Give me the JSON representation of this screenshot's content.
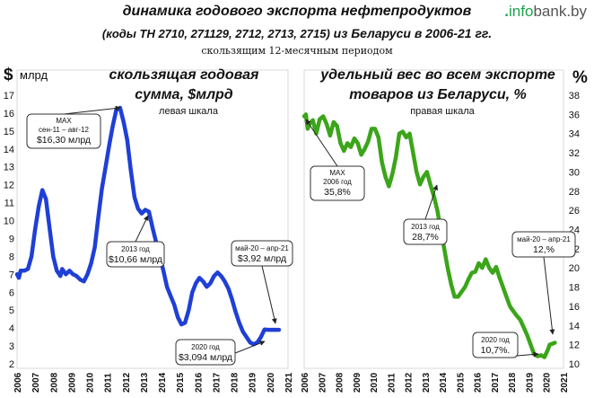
{
  "header": {
    "title": "динамика годового экспорта нефтепродуктов",
    "subtitle_codes": "(коды ТН 2710,  271129,  2712,  2713,  2715)",
    "subtitle_country": " из Беларуси в 2006-21 гг.",
    "note": "скользящим 12-месячным периодом",
    "logo_dot": ".",
    "logo_info": "info",
    "logo_rest": "bank.by"
  },
  "chart_data": [
    {
      "type": "line",
      "title": "скользящая годовая",
      "title_line2": "сумма, $млрд",
      "scale_note": "левая  шкала",
      "ylabel": "$",
      "yunit": "млрд",
      "ylim": [
        2,
        17
      ],
      "yticks": [
        "2",
        "3",
        "4",
        "5",
        "6",
        "7",
        "8",
        "9",
        "10",
        "11",
        "12",
        "13",
        "14",
        "15",
        "16",
        "17"
      ],
      "xticks": [
        "2006",
        "2007",
        "2008",
        "2009",
        "2010",
        "2011",
        "2012",
        "2013",
        "2014",
        "2015",
        "2016",
        "2017",
        "2018",
        "2019",
        "2020",
        "2021"
      ],
      "color": "#1f3fd6",
      "x": [
        2006.0,
        2006.1,
        2006.2,
        2006.4,
        2006.6,
        2006.8,
        2007.0,
        2007.2,
        2007.4,
        2007.6,
        2007.8,
        2008.0,
        2008.2,
        2008.4,
        2008.5,
        2008.7,
        2008.9,
        2009.1,
        2009.3,
        2009.5,
        2009.7,
        2009.9,
        2010.1,
        2010.3,
        2010.5,
        2010.7,
        2010.9,
        2011.1,
        2011.3,
        2011.5,
        2011.7,
        2011.9,
        2012.1,
        2012.3,
        2012.5,
        2012.7,
        2012.9,
        2013.1,
        2013.3,
        2013.5,
        2013.7,
        2013.9,
        2014.1,
        2014.3,
        2014.5,
        2014.7,
        2014.9,
        2015.1,
        2015.3,
        2015.5,
        2015.7,
        2015.9,
        2016.1,
        2016.3,
        2016.5,
        2016.7,
        2016.9,
        2017.1,
        2017.3,
        2017.5,
        2017.7,
        2017.9,
        2018.1,
        2018.3,
        2018.5,
        2018.7,
        2018.9,
        2019.1,
        2019.3,
        2019.5,
        2019.7,
        2019.9,
        2020.1,
        2020.2,
        2020.35,
        2020.5
      ],
      "values": [
        7.0,
        6.8,
        7.2,
        7.2,
        7.3,
        8.0,
        9.5,
        10.8,
        11.7,
        11.2,
        9.6,
        8.0,
        7.2,
        6.9,
        7.3,
        7.0,
        7.2,
        7.0,
        6.9,
        6.7,
        6.6,
        7.0,
        7.6,
        8.5,
        10.2,
        11.8,
        13.0,
        14.2,
        15.3,
        16.2,
        16.3,
        15.5,
        14.5,
        12.8,
        11.3,
        10.66,
        10.4,
        10.6,
        10.5,
        9.6,
        8.8,
        8.0,
        7.2,
        6.3,
        5.8,
        5.3,
        4.6,
        4.2,
        4.3,
        5.0,
        6.0,
        6.5,
        6.8,
        6.6,
        6.3,
        6.5,
        6.9,
        7.1,
        6.9,
        6.6,
        6.2,
        5.6,
        4.9,
        4.3,
        3.8,
        3.5,
        3.2,
        3.094,
        3.2,
        3.5,
        3.92,
        3.9,
        3.9,
        3.9,
        3.9,
        3.9
      ],
      "annotations": [
        {
          "label_lines": [
            "MAX",
            "сен-11 – авг-12",
            "$16,30 млрд"
          ],
          "x": 2011.7,
          "y": 16.3
        },
        {
          "label_lines": [
            "2013 год",
            "$10,66 млрд"
          ],
          "x": 2012.9,
          "y": 10.66
        },
        {
          "label_lines": [
            "май-20 – апр-21",
            "$3,92 млрд"
          ],
          "x": 2020.5,
          "y": 3.92
        },
        {
          "label_lines": [
            "2020 год",
            "$3,094 млрд"
          ],
          "x": 2020.1,
          "y": 3.094
        }
      ]
    },
    {
      "type": "line",
      "title": "удельный вес во всем экспорте",
      "title_line2": "товаров из Беларуси, %",
      "scale_note": "правая  шкала",
      "ylabel": "%",
      "ylim": [
        10,
        38
      ],
      "yticks": [
        "10",
        "12",
        "14",
        "16",
        "18",
        "20",
        "22",
        "24",
        "26",
        "28",
        "30",
        "32",
        "34",
        "36",
        "38"
      ],
      "xticks": [
        "2006",
        "2007",
        "2008",
        "2009",
        "2010",
        "2011",
        "2012",
        "2013",
        "2014",
        "2015",
        "2016",
        "2017",
        "2018",
        "2019",
        "2020",
        "2021"
      ],
      "color": "#3ba51a",
      "x": [
        2006.0,
        2006.1,
        2006.2,
        2006.3,
        2006.5,
        2006.7,
        2006.9,
        2007.1,
        2007.3,
        2007.5,
        2007.7,
        2007.9,
        2008.1,
        2008.3,
        2008.5,
        2008.7,
        2008.9,
        2009.1,
        2009.3,
        2009.5,
        2009.7,
        2009.9,
        2010.1,
        2010.3,
        2010.5,
        2010.7,
        2010.9,
        2011.1,
        2011.3,
        2011.5,
        2011.7,
        2011.9,
        2012.1,
        2012.3,
        2012.5,
        2012.7,
        2012.9,
        2013.1,
        2013.3,
        2013.5,
        2013.7,
        2013.9,
        2014.1,
        2014.3,
        2014.5,
        2014.7,
        2014.9,
        2015.1,
        2015.3,
        2015.5,
        2015.7,
        2015.9,
        2016.1,
        2016.3,
        2016.5,
        2016.7,
        2016.9,
        2017.1,
        2017.3,
        2017.5,
        2017.7,
        2017.9,
        2018.1,
        2018.3,
        2018.5,
        2018.7,
        2018.9,
        2019.1,
        2019.3,
        2019.5,
        2019.7,
        2019.9,
        2020.1,
        2020.2,
        2020.35,
        2020.5
      ],
      "values": [
        35.8,
        36.0,
        34.5,
        35.0,
        35.4,
        34.0,
        35.5,
        35.8,
        35.0,
        33.8,
        35.2,
        34.8,
        33.0,
        32.2,
        33.0,
        32.6,
        33.5,
        33.0,
        31.8,
        32.4,
        33.2,
        34.5,
        34.5,
        33.6,
        31.0,
        29.5,
        28.5,
        29.8,
        31.5,
        34.0,
        34.2,
        33.6,
        34.0,
        32.0,
        30.0,
        28.7,
        29.5,
        30.0,
        28.7,
        27.5,
        26.0,
        24.0,
        22.0,
        20.0,
        18.3,
        17.0,
        17.0,
        17.5,
        18.0,
        18.8,
        19.5,
        19.6,
        20.5,
        20.0,
        20.9,
        20.0,
        19.5,
        20.1,
        19.0,
        18.0,
        17.0,
        16.0,
        15.5,
        15.0,
        14.6,
        13.8,
        13.0,
        12.0,
        11.0,
        10.8,
        10.9,
        10.7,
        11.5,
        12.0,
        12.1,
        12.2
      ],
      "annotations": [
        {
          "label_lines": [
            "MAX",
            "2006 год",
            "35,8%"
          ],
          "x": 2006.0,
          "y": 35.8
        },
        {
          "label_lines": [
            "2013 год",
            "28,7%"
          ],
          "x": 2012.9,
          "y": 28.7
        },
        {
          "label_lines": [
            "май-20 – апр-21",
            "12,%"
          ],
          "x": 2020.4,
          "y": 12.2
        },
        {
          "label_lines": [
            "2020 год",
            "10,7%."
          ],
          "x": 2019.9,
          "y": 10.7
        }
      ]
    }
  ]
}
